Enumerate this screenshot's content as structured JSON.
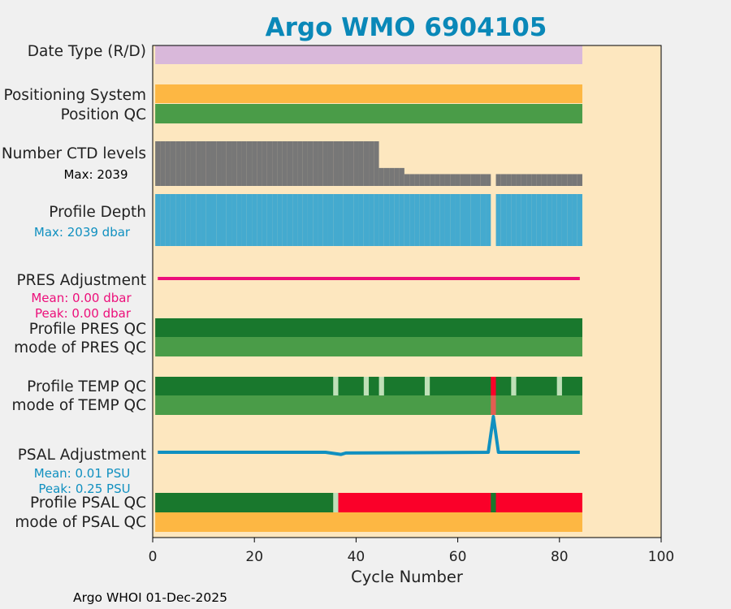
{
  "chart_data": {
    "type": "bar",
    "title": "Argo WMO 6904105",
    "xlabel": "Cycle Number",
    "xlim": [
      0,
      100
    ],
    "xticks": [
      0,
      20,
      40,
      60,
      80,
      100
    ],
    "footer": "Argo WHOI 01-Dec-2025",
    "colors": {
      "background": "#fde7bf",
      "title": "#0a88b8",
      "lavender": "#d9b8da",
      "orange": "#fdb743",
      "green_light": "#4a9c48",
      "green_dark": "#19782d",
      "green_pale": "#bfe0b8",
      "red": "#fa0029",
      "red_soft": "#e35d52",
      "gray": "#777777",
      "blue": "#44aacf",
      "pink": "#ec0f7a",
      "psal_blue": "#1090c0"
    },
    "rows": [
      {
        "label": "Date Type (R/D)",
        "color": "lavender"
      },
      {
        "label": "Positioning System",
        "color": "orange"
      },
      {
        "label": "Position QC",
        "color": "green_light"
      },
      {
        "label": "Number CTD levels",
        "annotation": "Max: 2039",
        "max": 2039
      },
      {
        "label": "Profile Depth",
        "annotation": "Max: 2039 dbar",
        "max": 2039
      },
      {
        "label": "PRES Adjustment",
        "annotations": [
          "Mean: 0.00 dbar",
          "Peak: 0.00 dbar"
        ],
        "mean": 0.0,
        "peak": 0.0
      },
      {
        "label": "Profile PRES QC",
        "color": "green_dark"
      },
      {
        "label": "mode of PRES QC",
        "color": "green_light"
      },
      {
        "label": "Profile TEMP QC",
        "color": "green_dark",
        "pale_cycles": [
          36,
          42,
          45,
          54,
          71,
          80
        ],
        "red_cycles": [
          67
        ]
      },
      {
        "label": "mode of TEMP QC",
        "color": "green_light",
        "soft_red_cycles": [
          67
        ]
      },
      {
        "label": "PSAL Adjustment",
        "annotations": [
          "Mean: 0.01 PSU",
          "Peak: 0.25 PSU"
        ],
        "mean": 0.01,
        "peak": 0.25
      },
      {
        "label": "Profile PSAL QC",
        "green_until": 37,
        "pale_cycles": [
          36
        ],
        "green_cycles": [
          67
        ]
      },
      {
        "label": "mode of PSAL QC",
        "color": "orange"
      }
    ],
    "cycles": {
      "first": 1,
      "last": 84,
      "gap": 67
    },
    "ctd_levels": {
      "segments": [
        {
          "from": 1,
          "to": 44,
          "value": 2039
        },
        {
          "from": 45,
          "to": 49,
          "value": 820
        },
        {
          "from": 50,
          "to": 84,
          "value": 540
        }
      ]
    },
    "psal_adjustment": {
      "x": [
        1,
        34,
        36,
        37,
        38,
        66,
        67,
        68,
        84
      ],
      "y": [
        0.0,
        0.0,
        -0.01,
        -0.015,
        -0.005,
        0.0,
        0.25,
        0.0,
        0.0
      ]
    }
  }
}
